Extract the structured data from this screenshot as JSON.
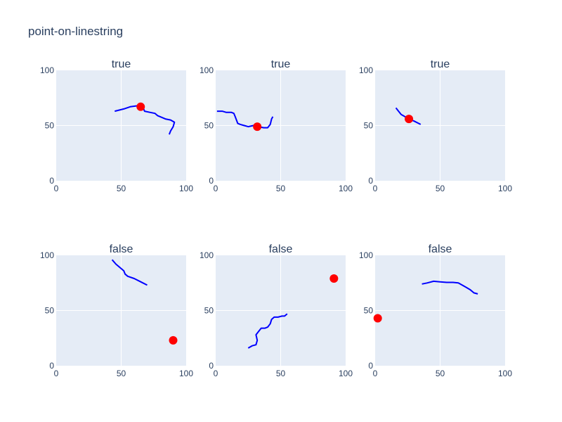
{
  "title": "point-on-linestring",
  "colors": {
    "line": "#0000ff",
    "point": "#ff0000",
    "plot_bg": "#e5ecf6",
    "grid": "#ffffff",
    "text": "#2a3f5f"
  },
  "chart_data": [
    {
      "type": "scatter",
      "title": "true",
      "xlim": [
        0,
        100
      ],
      "ylim": [
        0,
        100
      ],
      "xticks": [
        "0",
        "50",
        "100"
      ],
      "yticks": [
        "0",
        "50",
        "100"
      ],
      "line": [
        [
          45,
          63
        ],
        [
          52,
          65
        ],
        [
          57,
          67
        ],
        [
          63,
          68
        ],
        [
          66,
          68.5
        ],
        [
          67,
          66
        ],
        [
          68,
          63
        ],
        [
          72,
          62
        ],
        [
          76,
          61
        ],
        [
          78,
          59
        ],
        [
          80,
          58
        ],
        [
          84,
          56
        ],
        [
          88,
          55
        ],
        [
          91,
          53
        ],
        [
          90,
          49
        ],
        [
          88,
          45
        ],
        [
          87,
          42
        ]
      ],
      "point": [
        65,
        67
      ]
    },
    {
      "type": "scatter",
      "title": "true",
      "xlim": [
        0,
        100
      ],
      "ylim": [
        0,
        100
      ],
      "xticks": [
        "0",
        "50",
        "100"
      ],
      "yticks": [
        "0",
        "50",
        "100"
      ],
      "line": [
        [
          1,
          63
        ],
        [
          5,
          63
        ],
        [
          8,
          62
        ],
        [
          12,
          62
        ],
        [
          14,
          61
        ],
        [
          15,
          58
        ],
        [
          16,
          55
        ],
        [
          17,
          52
        ],
        [
          19,
          51
        ],
        [
          22,
          50
        ],
        [
          25,
          49
        ],
        [
          29,
          50
        ],
        [
          33,
          49
        ],
        [
          37,
          48
        ],
        [
          40,
          48
        ],
        [
          42,
          51
        ],
        [
          43,
          56
        ],
        [
          44,
          58
        ]
      ],
      "point": [
        32,
        49
      ]
    },
    {
      "type": "scatter",
      "title": "true",
      "xlim": [
        0,
        100
      ],
      "ylim": [
        0,
        100
      ],
      "xticks": [
        "0",
        "50",
        "100"
      ],
      "yticks": [
        "0",
        "50",
        "100"
      ],
      "line": [
        [
          16,
          66
        ],
        [
          18,
          63
        ],
        [
          20,
          60
        ],
        [
          23,
          58
        ],
        [
          26,
          56
        ],
        [
          30,
          54
        ],
        [
          35,
          51
        ]
      ],
      "point": [
        26,
        56
      ]
    },
    {
      "type": "scatter",
      "title": "false",
      "xlim": [
        0,
        100
      ],
      "ylim": [
        0,
        100
      ],
      "xticks": [
        "0",
        "50",
        "100"
      ],
      "yticks": [
        "0",
        "50",
        "100"
      ],
      "line": [
        [
          43,
          96
        ],
        [
          46,
          92
        ],
        [
          49,
          89
        ],
        [
          52,
          86
        ],
        [
          53,
          83
        ],
        [
          55,
          81
        ],
        [
          60,
          79
        ],
        [
          65,
          76
        ],
        [
          70,
          73
        ]
      ],
      "point": [
        90,
        23
      ]
    },
    {
      "type": "scatter",
      "title": "false",
      "xlim": [
        0,
        100
      ],
      "ylim": [
        0,
        100
      ],
      "xticks": [
        "0",
        "50",
        "100"
      ],
      "yticks": [
        "0",
        "50",
        "100"
      ],
      "line": [
        [
          25,
          16
        ],
        [
          28,
          18
        ],
        [
          31,
          19
        ],
        [
          32,
          23
        ],
        [
          31,
          28
        ],
        [
          33,
          31
        ],
        [
          35,
          34
        ],
        [
          38,
          34
        ],
        [
          40,
          35
        ],
        [
          42,
          38
        ],
        [
          43,
          42
        ],
        [
          45,
          44
        ],
        [
          48,
          44
        ],
        [
          51,
          45
        ],
        [
          53,
          45
        ],
        [
          55,
          47
        ]
      ],
      "point": [
        91,
        79
      ]
    },
    {
      "type": "scatter",
      "title": "false",
      "xlim": [
        0,
        100
      ],
      "ylim": [
        0,
        100
      ],
      "xticks": [
        "0",
        "50",
        "100"
      ],
      "yticks": [
        "0",
        "50",
        "100"
      ],
      "line": [
        [
          36,
          74
        ],
        [
          40,
          75
        ],
        [
          45,
          76.5
        ],
        [
          50,
          76
        ],
        [
          55,
          75.5
        ],
        [
          60,
          75.5
        ],
        [
          64,
          75
        ],
        [
          67,
          73
        ],
        [
          70,
          71
        ],
        [
          73,
          69
        ],
        [
          76,
          66
        ],
        [
          79,
          65
        ]
      ],
      "point": [
        2,
        43
      ]
    }
  ]
}
